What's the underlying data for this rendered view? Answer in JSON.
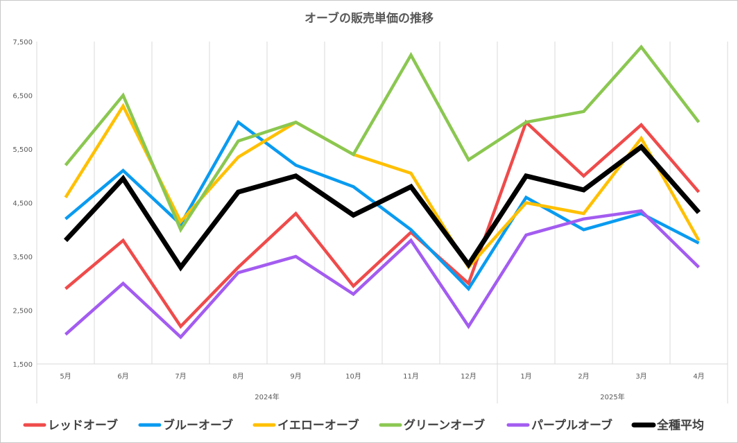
{
  "chart_data": {
    "type": "line",
    "title": "オーブの販売単価の推移",
    "categories": [
      "5月",
      "6月",
      "7月",
      "8月",
      "9月",
      "10月",
      "11月",
      "12月",
      "1月",
      "2月",
      "3月",
      "4月"
    ],
    "year_groups": [
      {
        "label": "2024年",
        "start": 0,
        "end": 7
      },
      {
        "label": "2025年",
        "start": 8,
        "end": 11
      }
    ],
    "ylim": [
      1500,
      7500
    ],
    "yticks": [
      1500,
      2500,
      3500,
      4500,
      5500,
      6500,
      7500
    ],
    "ytick_labels": [
      "1,500",
      "2,500",
      "3,500",
      "4,500",
      "5,500",
      "6,500",
      "7,500"
    ],
    "grid": "vertical",
    "legend_position": "bottom",
    "series": [
      {
        "name": "レッドオーブ",
        "color": "#ef4b4b",
        "values": [
          2900,
          3800,
          2200,
          3300,
          4300,
          2950,
          3950,
          3000,
          6000,
          5000,
          5950,
          4700
        ]
      },
      {
        "name": "ブルーオーブ",
        "color": "#0a9bf0",
        "values": [
          4200,
          5100,
          4100,
          6000,
          5200,
          4800,
          4000,
          2900,
          4600,
          4000,
          4300,
          3750
        ]
      },
      {
        "name": "イエローオーブ",
        "color": "#ffc000",
        "values": [
          4600,
          6300,
          4150,
          5350,
          6000,
          5400,
          5050,
          3300,
          4500,
          4300,
          5700,
          3800
        ]
      },
      {
        "name": "グリーンオーブ",
        "color": "#8bc751",
        "values": [
          5200,
          6500,
          4000,
          5650,
          6000,
          5400,
          7250,
          5300,
          6000,
          6200,
          7400,
          6000
        ]
      },
      {
        "name": "パープルオーブ",
        "color": "#a35cf0",
        "values": [
          2050,
          3000,
          2000,
          3200,
          3500,
          2800,
          3800,
          2200,
          3900,
          4200,
          4350,
          3300
        ]
      },
      {
        "name": "全種平均",
        "color": "#000000",
        "values": [
          3800,
          4950,
          3300,
          4700,
          5000,
          4270,
          4800,
          3350,
          5000,
          4740,
          5540,
          4320
        ]
      }
    ]
  }
}
